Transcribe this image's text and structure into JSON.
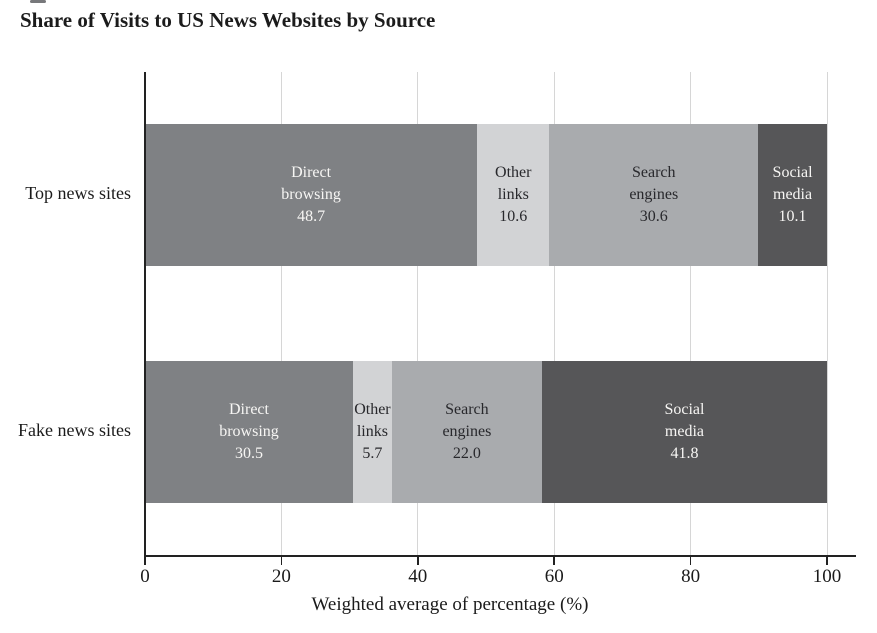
{
  "title": "Share of Visits to US News Websites by Source",
  "chart_data": {
    "type": "bar",
    "orientation": "horizontal",
    "stacked": true,
    "title": "Share of Visits to US News Websites by Source",
    "xlabel": "Weighted average of percentage (%)",
    "ylabel": "",
    "xlim": [
      0,
      100
    ],
    "xtick_labels": [
      "0",
      "20",
      "40",
      "60",
      "80",
      "100"
    ],
    "grid": "vertical-light-gray-gridlines",
    "legend": "none",
    "categories": [
      "Top news sites",
      "Fake news sites"
    ],
    "series": [
      {
        "name": "Direct browsing",
        "values": [
          48.7,
          30.5
        ],
        "value_labels": [
          "48.7",
          "30.5"
        ],
        "color": "#7f8184",
        "text_color": "#f7f6f4"
      },
      {
        "name": "Other links",
        "values": [
          10.6,
          5.7
        ],
        "value_labels": [
          "10.6",
          "5.7"
        ],
        "color": "#d2d3d5",
        "text_color": "#28282c"
      },
      {
        "name": "Search engines",
        "values": [
          30.6,
          22.0
        ],
        "value_labels": [
          "30.6",
          "22.0"
        ],
        "color": "#a9abae",
        "text_color": "#28282c"
      },
      {
        "name": "Social media",
        "values": [
          10.1,
          41.8
        ],
        "value_labels": [
          "10.1",
          "41.8"
        ],
        "color": "#565658",
        "text_color": "#f7f6f4"
      }
    ],
    "colors": {
      "axis": "#222222",
      "gridline": "#d6d6d6",
      "text": "#1b1b1b"
    }
  }
}
